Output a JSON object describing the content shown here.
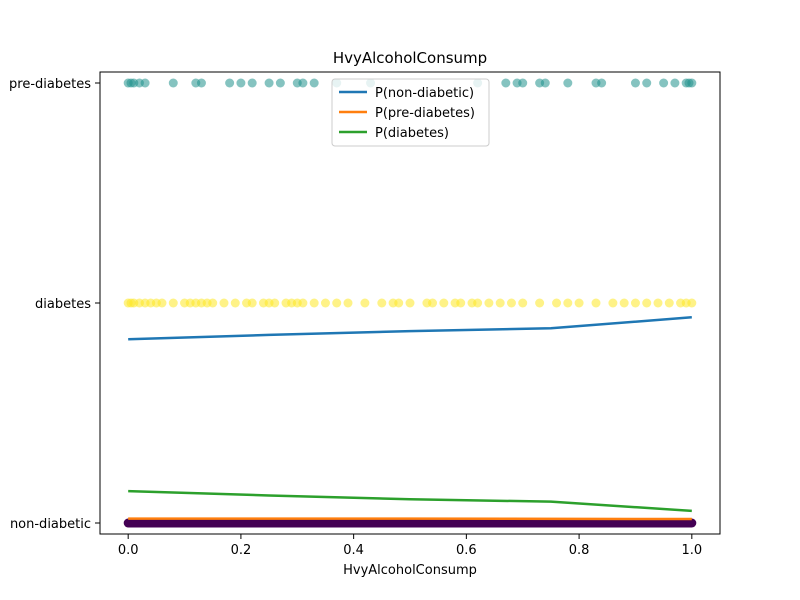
{
  "chart_data": {
    "type": "scatter",
    "title": "HvyAlcoholConsump",
    "xlabel": "HvyAlcoholConsump",
    "ylabel": "",
    "xlim": [
      -0.05,
      1.05
    ],
    "ylim": [
      -0.05,
      2.05
    ],
    "xticks": [
      0.0,
      0.2,
      0.4,
      0.6,
      0.8,
      1.0
    ],
    "xtick_labels": [
      "0.0",
      "0.2",
      "0.4",
      "0.6",
      "0.8",
      "1.0"
    ],
    "yticks": [
      0,
      1,
      2
    ],
    "ytick_labels": [
      "non-diabetic",
      "diabetes",
      "pre-diabetes"
    ],
    "grid": false,
    "legend_position": "top-center",
    "scatter_series": [
      {
        "category": "pre-diabetes",
        "y": 2,
        "color": "#21918c",
        "x": [
          0.0,
          0.005,
          0.01,
          0.02,
          0.03,
          0.08,
          0.12,
          0.13,
          0.18,
          0.2,
          0.22,
          0.25,
          0.27,
          0.3,
          0.31,
          0.33,
          0.37,
          0.43,
          0.62,
          0.67,
          0.69,
          0.7,
          0.73,
          0.74,
          0.78,
          0.83,
          0.84,
          0.9,
          0.92,
          0.95,
          0.97,
          0.99,
          0.995,
          1.0
        ]
      },
      {
        "category": "diabetes",
        "y": 1,
        "color": "#fde725",
        "x": [
          0.0,
          0.005,
          0.01,
          0.02,
          0.03,
          0.04,
          0.05,
          0.06,
          0.08,
          0.1,
          0.11,
          0.12,
          0.13,
          0.14,
          0.15,
          0.17,
          0.19,
          0.21,
          0.22,
          0.24,
          0.25,
          0.26,
          0.28,
          0.29,
          0.3,
          0.31,
          0.33,
          0.35,
          0.37,
          0.39,
          0.42,
          0.45,
          0.47,
          0.48,
          0.5,
          0.53,
          0.54,
          0.56,
          0.58,
          0.59,
          0.61,
          0.62,
          0.64,
          0.66,
          0.68,
          0.7,
          0.73,
          0.76,
          0.78,
          0.8,
          0.83,
          0.86,
          0.88,
          0.9,
          0.92,
          0.94,
          0.96,
          0.98,
          0.99,
          1.0
        ]
      }
    ],
    "band_series": {
      "category": "non-diabetic",
      "y": 0,
      "color": "#440154",
      "x_range": [
        0.0,
        1.0
      ]
    },
    "series": [
      {
        "name": "P(non-diabetic)",
        "color": "#1f77b4",
        "x": [
          0.0,
          0.25,
          0.5,
          0.75,
          1.0
        ],
        "values": [
          0.835,
          0.855,
          0.872,
          0.885,
          0.935
        ]
      },
      {
        "name": "P(pre-diabetes)",
        "color": "#ff7f0e",
        "x": [
          0.0,
          0.5,
          1.0
        ],
        "values": [
          0.02,
          0.02,
          0.018
        ]
      },
      {
        "name": "P(diabetes)",
        "color": "#2ca02c",
        "x": [
          0.0,
          0.25,
          0.5,
          0.75,
          1.0
        ],
        "values": [
          0.145,
          0.125,
          0.108,
          0.097,
          0.055
        ]
      }
    ]
  }
}
